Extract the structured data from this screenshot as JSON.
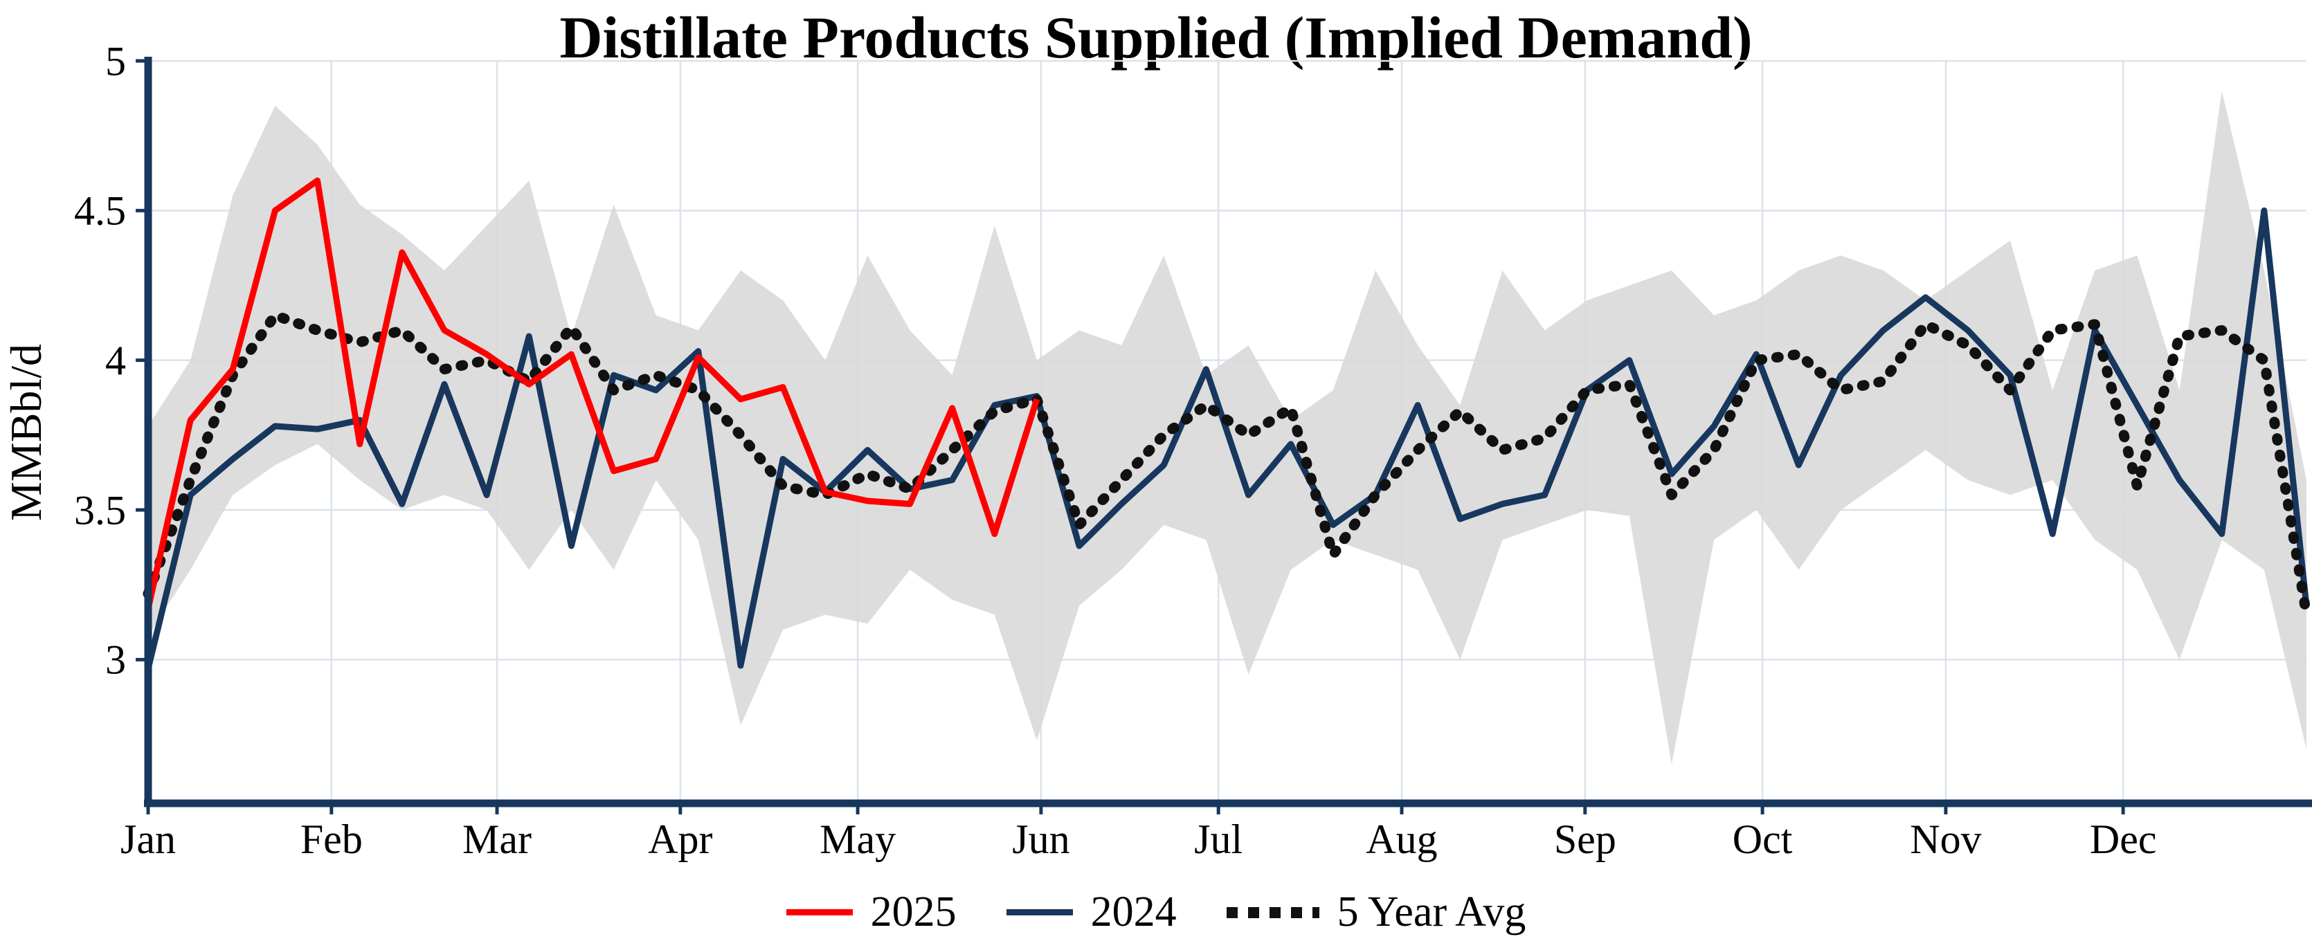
{
  "chart_data": {
    "type": "line",
    "title": "Distillate Products Supplied (Implied Demand)",
    "xlabel": "",
    "ylabel": "MMBbl/d",
    "ylim": [
      2.52,
      5
    ],
    "yticks": [
      "3",
      "3.5",
      "4",
      "4.5",
      "5"
    ],
    "months": [
      "Jan",
      "Feb",
      "Mar",
      "Apr",
      "May",
      "Jun",
      "Jul",
      "Aug",
      "Sep",
      "Oct",
      "Nov",
      "Dec"
    ],
    "x_unit": "week",
    "weeks": 52,
    "grid": true,
    "legend_position": "bottom",
    "axis_color": "#17375e",
    "series": [
      {
        "name": "2025",
        "color": "#fe0000",
        "style": "solid",
        "values": [
          3.17,
          3.8,
          3.97,
          4.5,
          4.6,
          3.72,
          4.36,
          4.1,
          4.02,
          3.92,
          4.02,
          3.63,
          3.67,
          4.01,
          3.87,
          3.91,
          3.56,
          3.53,
          3.52,
          3.84,
          3.42,
          3.87
        ]
      },
      {
        "name": "2024",
        "color": "#17375e",
        "style": "solid",
        "values": [
          2.97,
          3.55,
          3.67,
          3.78,
          3.77,
          3.8,
          3.52,
          3.92,
          3.55,
          4.08,
          3.38,
          3.95,
          3.9,
          4.03,
          2.98,
          3.67,
          3.56,
          3.7,
          3.57,
          3.6,
          3.85,
          3.88,
          3.38,
          3.52,
          3.65,
          3.97,
          3.55,
          3.72,
          3.45,
          3.55,
          3.85,
          3.47,
          3.52,
          3.55,
          3.9,
          4.0,
          3.62,
          3.78,
          4.02,
          3.65,
          3.95,
          4.1,
          4.21,
          4.1,
          3.95,
          3.42,
          4.1,
          3.85,
          3.6,
          3.42,
          4.5,
          3.18
        ]
      },
      {
        "name": "5 Year Avg",
        "color": "#111111",
        "style": "dotted",
        "values": [
          3.22,
          3.6,
          3.95,
          4.15,
          4.1,
          4.06,
          4.1,
          3.97,
          4.0,
          3.93,
          4.11,
          3.9,
          3.95,
          3.9,
          3.75,
          3.58,
          3.55,
          3.62,
          3.57,
          3.7,
          3.83,
          3.87,
          3.45,
          3.6,
          3.75,
          3.85,
          3.75,
          3.84,
          3.35,
          3.55,
          3.7,
          3.83,
          3.7,
          3.74,
          3.9,
          3.92,
          3.55,
          3.7,
          4.0,
          4.02,
          3.9,
          3.93,
          4.12,
          4.05,
          3.9,
          4.1,
          4.12,
          3.58,
          4.08,
          4.1,
          4.0,
          3.15
        ]
      }
    ],
    "band": {
      "name": "5 Year Range",
      "color": "#d9d9d9",
      "upper": [
        3.78,
        4.0,
        4.55,
        4.85,
        4.72,
        4.52,
        4.42,
        4.3,
        4.45,
        4.6,
        4.08,
        4.52,
        4.15,
        4.1,
        4.3,
        4.2,
        4.0,
        4.35,
        4.1,
        3.95,
        4.45,
        4.0,
        4.1,
        4.05,
        4.35,
        3.95,
        4.05,
        3.8,
        3.9,
        4.3,
        4.05,
        3.85,
        4.3,
        4.1,
        4.2,
        4.25,
        4.3,
        4.15,
        4.2,
        4.3,
        4.35,
        4.3,
        4.2,
        4.3,
        4.4,
        3.9,
        4.3,
        4.35,
        3.9,
        4.9,
        4.3,
        3.6
      ],
      "lower": [
        3.08,
        3.3,
        3.55,
        3.65,
        3.72,
        3.6,
        3.5,
        3.55,
        3.5,
        3.3,
        3.5,
        3.3,
        3.6,
        3.4,
        2.78,
        3.1,
        3.15,
        3.12,
        3.3,
        3.2,
        3.15,
        2.73,
        3.18,
        3.3,
        3.45,
        3.4,
        2.95,
        3.3,
        3.4,
        3.35,
        3.3,
        3.0,
        3.4,
        3.45,
        3.5,
        3.48,
        2.65,
        3.4,
        3.5,
        3.3,
        3.5,
        3.6,
        3.7,
        3.6,
        3.55,
        3.6,
        3.4,
        3.3,
        3.0,
        3.4,
        3.3,
        2.7
      ]
    }
  },
  "legend": {
    "items": [
      {
        "label": "2025"
      },
      {
        "label": "2024"
      },
      {
        "label": "5 Year Avg"
      }
    ]
  }
}
